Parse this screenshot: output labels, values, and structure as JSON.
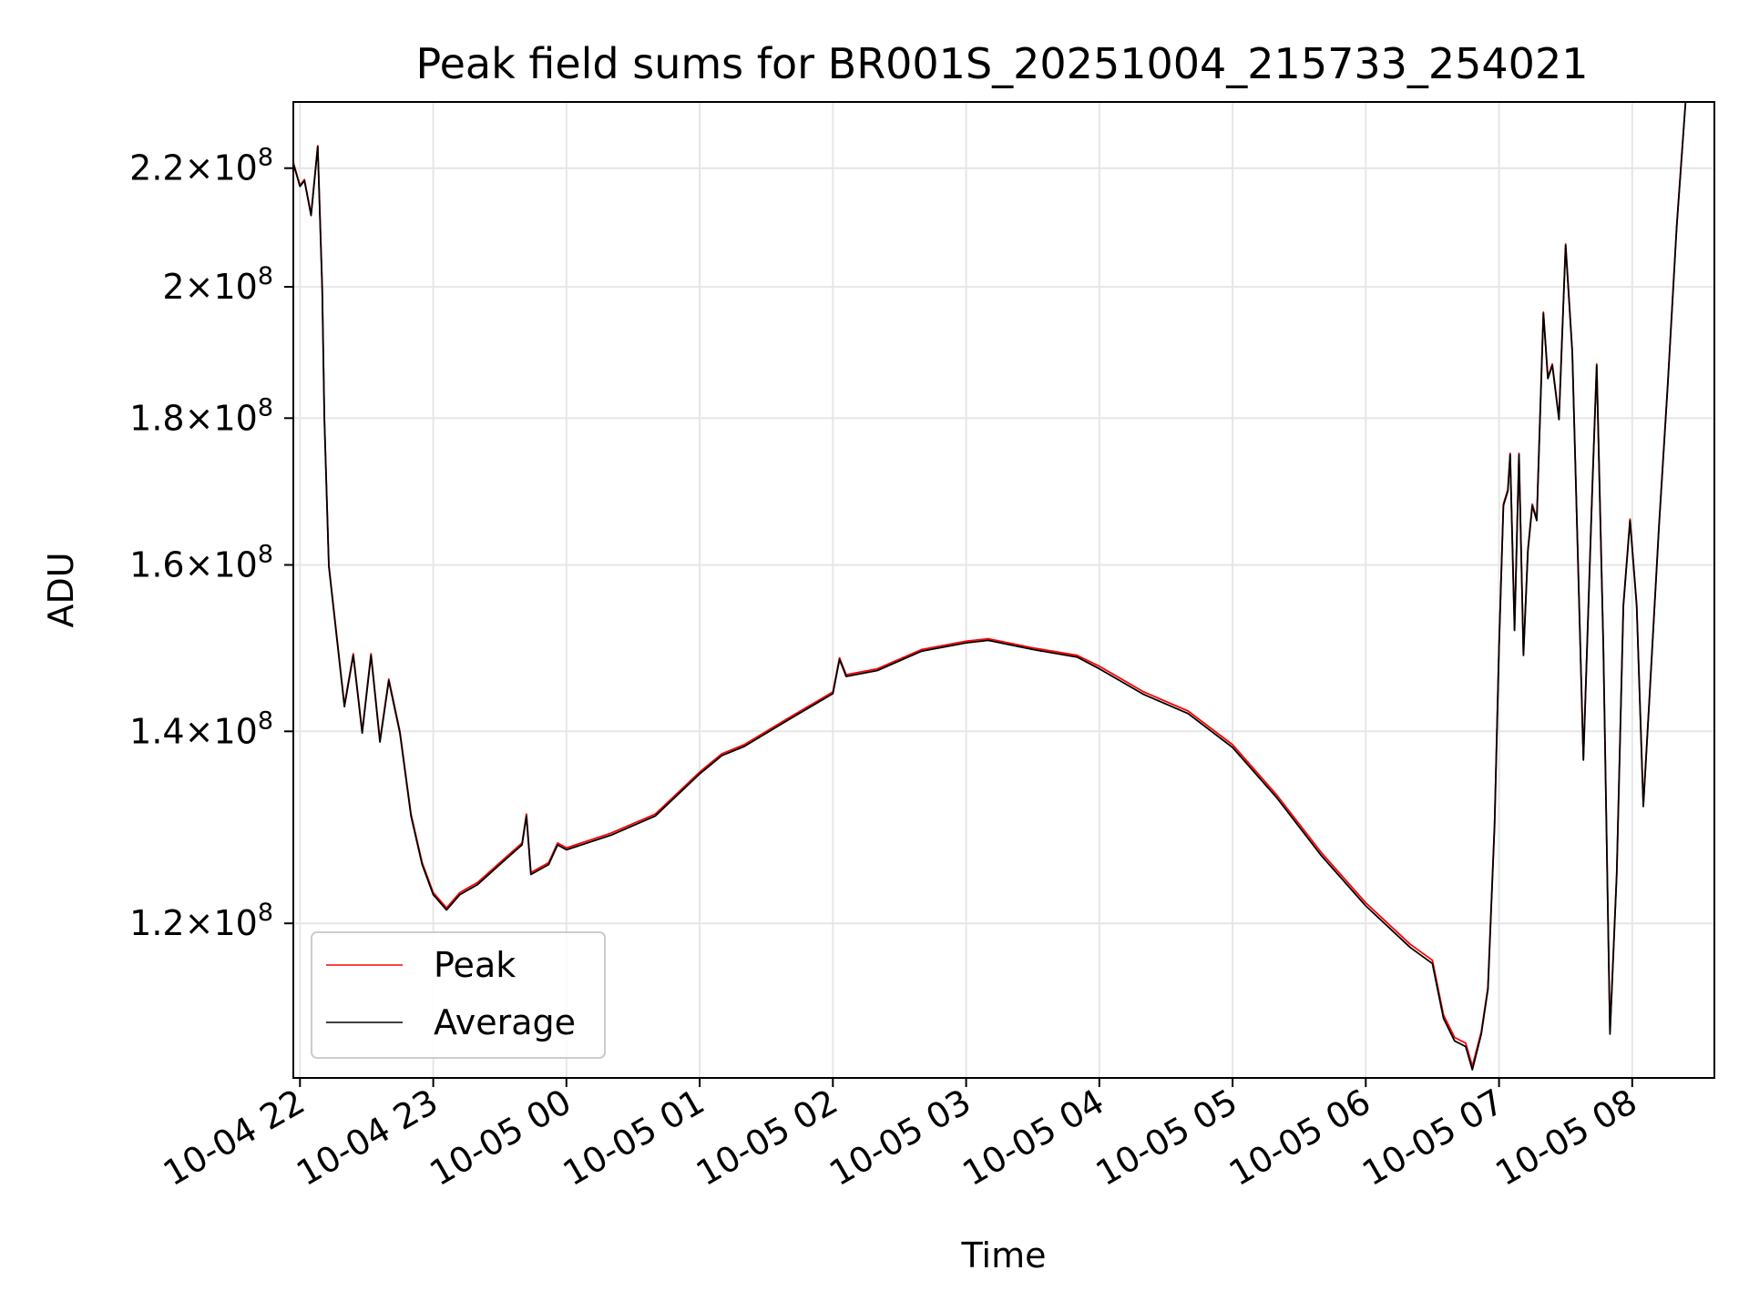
{
  "chart_data": {
    "type": "line",
    "title": "Peak field sums for BR001S_20251004_215733_254021",
    "xlabel": "Time",
    "ylabel": "ADU",
    "y_scale": "log",
    "xlim": [
      "2025-10-04T21:57",
      "2025-10-05T08:37"
    ],
    "ylim": [
      106000000,
      232000000
    ],
    "grid": true,
    "legend": {
      "placement": "lower-left",
      "entries": [
        "Peak",
        "Average"
      ]
    },
    "x_ticks": [
      {
        "value": "2025-10-04T22:00",
        "label": "10-04 22"
      },
      {
        "value": "2025-10-04T23:00",
        "label": "10-04 23"
      },
      {
        "value": "2025-10-05T00:00",
        "label": "10-05 00"
      },
      {
        "value": "2025-10-05T01:00",
        "label": "10-05 01"
      },
      {
        "value": "2025-10-05T02:00",
        "label": "10-05 02"
      },
      {
        "value": "2025-10-05T03:00",
        "label": "10-05 03"
      },
      {
        "value": "2025-10-05T04:00",
        "label": "10-05 04"
      },
      {
        "value": "2025-10-05T05:00",
        "label": "10-05 05"
      },
      {
        "value": "2025-10-05T06:00",
        "label": "10-05 06"
      },
      {
        "value": "2025-10-05T07:00",
        "label": "10-05 07"
      },
      {
        "value": "2025-10-05T08:00",
        "label": "10-05 08"
      }
    ],
    "y_ticks": [
      {
        "value": 120000000,
        "mantissa": "1.2",
        "base": "10",
        "exp": "8"
      },
      {
        "value": 140000000,
        "mantissa": "1.4",
        "base": "10",
        "exp": "8"
      },
      {
        "value": 160000000,
        "mantissa": "1.6",
        "base": "10",
        "exp": "8"
      },
      {
        "value": 180000000,
        "mantissa": "1.8",
        "base": "10",
        "exp": "8"
      },
      {
        "value": 200000000,
        "mantissa": "2",
        "base": "10",
        "exp": "8"
      },
      {
        "value": 220000000,
        "mantissa": "2.2",
        "base": "10",
        "exp": "8"
      }
    ],
    "series": [
      {
        "name": "Peak",
        "color": "#ff0000",
        "points": [
          [
            "2025-10-04T21:57",
            221000000
          ],
          [
            "2025-10-04T22:00",
            217000000
          ],
          [
            "2025-10-04T22:02",
            218000000
          ],
          [
            "2025-10-04T22:05",
            212000000
          ],
          [
            "2025-10-04T22:07",
            220000000
          ],
          [
            "2025-10-04T22:08",
            224000000
          ],
          [
            "2025-10-04T22:10",
            200000000
          ],
          [
            "2025-10-04T22:11",
            180000000
          ],
          [
            "2025-10-04T22:13",
            160000000
          ],
          [
            "2025-10-04T22:20",
            143000000
          ],
          [
            "2025-10-04T22:24",
            149000000
          ],
          [
            "2025-10-04T22:28",
            140000000
          ],
          [
            "2025-10-04T22:32",
            149000000
          ],
          [
            "2025-10-04T22:36",
            139000000
          ],
          [
            "2025-10-04T22:40",
            146000000
          ],
          [
            "2025-10-04T22:45",
            140000000
          ],
          [
            "2025-10-04T22:50",
            131000000
          ],
          [
            "2025-10-04T22:55",
            126000000
          ],
          [
            "2025-10-04T23:00",
            123000000
          ],
          [
            "2025-10-04T23:06",
            121500000
          ],
          [
            "2025-10-04T23:12",
            123000000
          ],
          [
            "2025-10-04T23:20",
            124000000
          ],
          [
            "2025-10-04T23:30",
            126000000
          ],
          [
            "2025-10-04T23:40",
            128000000
          ],
          [
            "2025-10-04T23:42",
            131000000
          ],
          [
            "2025-10-04T23:44",
            125000000
          ],
          [
            "2025-10-04T23:52",
            126000000
          ],
          [
            "2025-10-04T23:56",
            128000000
          ],
          [
            "2025-10-05T00:00",
            127500000
          ],
          [
            "2025-10-05T00:20",
            129000000
          ],
          [
            "2025-10-05T00:40",
            131000000
          ],
          [
            "2025-10-05T01:00",
            135500000
          ],
          [
            "2025-10-05T01:10",
            137500000
          ],
          [
            "2025-10-05T01:20",
            138500000
          ],
          [
            "2025-10-05T01:40",
            141500000
          ],
          [
            "2025-10-05T02:00",
            144500000
          ],
          [
            "2025-10-05T02:03",
            148500000
          ],
          [
            "2025-10-05T02:06",
            146500000
          ],
          [
            "2025-10-05T02:20",
            147200000
          ],
          [
            "2025-10-05T02:40",
            149500000
          ],
          [
            "2025-10-05T03:00",
            150500000
          ],
          [
            "2025-10-05T03:10",
            150800000
          ],
          [
            "2025-10-05T03:30",
            149700000
          ],
          [
            "2025-10-05T03:50",
            148800000
          ],
          [
            "2025-10-05T04:00",
            147500000
          ],
          [
            "2025-10-05T04:20",
            144500000
          ],
          [
            "2025-10-05T04:40",
            142300000
          ],
          [
            "2025-10-05T05:00",
            138500000
          ],
          [
            "2025-10-05T05:20",
            133000000
          ],
          [
            "2025-10-05T05:40",
            127000000
          ],
          [
            "2025-10-05T06:00",
            122000000
          ],
          [
            "2025-10-05T06:20",
            118000000
          ],
          [
            "2025-10-05T06:30",
            116500000
          ],
          [
            "2025-10-05T06:35",
            111500000
          ],
          [
            "2025-10-05T06:40",
            109500000
          ],
          [
            "2025-10-05T06:45",
            109000000
          ],
          [
            "2025-10-05T06:48",
            107000000
          ],
          [
            "2025-10-05T06:52",
            110000000
          ],
          [
            "2025-10-05T06:55",
            114000000
          ],
          [
            "2025-10-05T06:58",
            130000000
          ],
          [
            "2025-10-05T07:00",
            150000000
          ],
          [
            "2025-10-05T07:02",
            168000000
          ],
          [
            "2025-10-05T07:04",
            170000000
          ],
          [
            "2025-10-05T07:05",
            175000000
          ],
          [
            "2025-10-05T07:07",
            152000000
          ],
          [
            "2025-10-05T07:09",
            175000000
          ],
          [
            "2025-10-05T07:11",
            149000000
          ],
          [
            "2025-10-05T07:13",
            162000000
          ],
          [
            "2025-10-05T07:15",
            168000000
          ],
          [
            "2025-10-05T07:17",
            166000000
          ],
          [
            "2025-10-05T07:20",
            196000000
          ],
          [
            "2025-10-05T07:22",
            186000000
          ],
          [
            "2025-10-05T07:24",
            188000000
          ],
          [
            "2025-10-05T07:27",
            180000000
          ],
          [
            "2025-10-05T07:30",
            207000000
          ],
          [
            "2025-10-05T07:33",
            190000000
          ],
          [
            "2025-10-05T07:38",
            137000000
          ],
          [
            "2025-10-05T07:42",
            170000000
          ],
          [
            "2025-10-05T07:44",
            188000000
          ],
          [
            "2025-10-05T07:47",
            150000000
          ],
          [
            "2025-10-05T07:50",
            110000000
          ],
          [
            "2025-10-05T07:53",
            125000000
          ],
          [
            "2025-10-05T07:56",
            155000000
          ],
          [
            "2025-10-05T07:59",
            166000000
          ],
          [
            "2025-10-05T08:02",
            155000000
          ],
          [
            "2025-10-05T08:05",
            132000000
          ],
          [
            "2025-10-05T08:08",
            145000000
          ],
          [
            "2025-10-05T08:12",
            165000000
          ],
          [
            "2025-10-05T08:16",
            185000000
          ],
          [
            "2025-10-05T08:20",
            210000000
          ],
          [
            "2025-10-05T08:24",
            232000000
          ]
        ]
      },
      {
        "name": "Average",
        "color": "#000000",
        "points": [
          [
            "2025-10-04T21:57",
            220800000
          ],
          [
            "2025-10-04T22:00",
            216800000
          ],
          [
            "2025-10-04T22:02",
            217800000
          ],
          [
            "2025-10-04T22:05",
            211800000
          ],
          [
            "2025-10-04T22:07",
            219800000
          ],
          [
            "2025-10-04T22:08",
            223800000
          ],
          [
            "2025-10-04T22:10",
            199800000
          ],
          [
            "2025-10-04T22:11",
            179800000
          ],
          [
            "2025-10-04T22:13",
            159800000
          ],
          [
            "2025-10-04T22:20",
            142800000
          ],
          [
            "2025-10-04T22:24",
            148800000
          ],
          [
            "2025-10-04T22:28",
            139800000
          ],
          [
            "2025-10-04T22:32",
            148800000
          ],
          [
            "2025-10-04T22:36",
            138800000
          ],
          [
            "2025-10-04T22:40",
            145800000
          ],
          [
            "2025-10-04T22:45",
            139800000
          ],
          [
            "2025-10-04T22:50",
            130800000
          ],
          [
            "2025-10-04T22:55",
            125800000
          ],
          [
            "2025-10-04T23:00",
            122800000
          ],
          [
            "2025-10-04T23:06",
            121300000
          ],
          [
            "2025-10-04T23:12",
            122800000
          ],
          [
            "2025-10-04T23:20",
            123800000
          ],
          [
            "2025-10-04T23:30",
            125800000
          ],
          [
            "2025-10-04T23:40",
            127800000
          ],
          [
            "2025-10-04T23:42",
            130800000
          ],
          [
            "2025-10-04T23:44",
            124800000
          ],
          [
            "2025-10-04T23:52",
            125800000
          ],
          [
            "2025-10-04T23:56",
            127800000
          ],
          [
            "2025-10-05T00:00",
            127300000
          ],
          [
            "2025-10-05T00:20",
            128800000
          ],
          [
            "2025-10-05T00:40",
            130800000
          ],
          [
            "2025-10-05T01:00",
            135300000
          ],
          [
            "2025-10-05T01:10",
            137300000
          ],
          [
            "2025-10-05T01:20",
            138300000
          ],
          [
            "2025-10-05T01:40",
            141300000
          ],
          [
            "2025-10-05T02:00",
            144300000
          ],
          [
            "2025-10-05T02:03",
            148300000
          ],
          [
            "2025-10-05T02:06",
            146300000
          ],
          [
            "2025-10-05T02:20",
            147000000
          ],
          [
            "2025-10-05T02:40",
            149300000
          ],
          [
            "2025-10-05T03:00",
            150300000
          ],
          [
            "2025-10-05T03:10",
            150600000
          ],
          [
            "2025-10-05T03:30",
            149500000
          ],
          [
            "2025-10-05T03:50",
            148600000
          ],
          [
            "2025-10-05T04:00",
            147200000
          ],
          [
            "2025-10-05T04:20",
            144200000
          ],
          [
            "2025-10-05T04:40",
            142000000
          ],
          [
            "2025-10-05T05:00",
            138200000
          ],
          [
            "2025-10-05T05:20",
            132700000
          ],
          [
            "2025-10-05T05:40",
            126700000
          ],
          [
            "2025-10-05T06:00",
            121700000
          ],
          [
            "2025-10-05T06:20",
            117700000
          ],
          [
            "2025-10-05T06:30",
            116200000
          ],
          [
            "2025-10-05T06:35",
            111200000
          ],
          [
            "2025-10-05T06:40",
            109200000
          ],
          [
            "2025-10-05T06:45",
            108700000
          ],
          [
            "2025-10-05T06:48",
            106700000
          ],
          [
            "2025-10-05T06:52",
            109800000
          ],
          [
            "2025-10-05T06:55",
            113800000
          ],
          [
            "2025-10-05T06:58",
            129800000
          ],
          [
            "2025-10-05T07:00",
            149800000
          ],
          [
            "2025-10-05T07:02",
            167800000
          ],
          [
            "2025-10-05T07:04",
            169800000
          ],
          [
            "2025-10-05T07:05",
            174800000
          ],
          [
            "2025-10-05T07:07",
            151800000
          ],
          [
            "2025-10-05T07:09",
            174800000
          ],
          [
            "2025-10-05T07:11",
            148800000
          ],
          [
            "2025-10-05T07:13",
            161800000
          ],
          [
            "2025-10-05T07:15",
            167800000
          ],
          [
            "2025-10-05T07:17",
            165800000
          ],
          [
            "2025-10-05T07:20",
            195800000
          ],
          [
            "2025-10-05T07:22",
            185800000
          ],
          [
            "2025-10-05T07:24",
            187800000
          ],
          [
            "2025-10-05T07:27",
            179800000
          ],
          [
            "2025-10-05T07:30",
            206800000
          ],
          [
            "2025-10-05T07:33",
            189800000
          ],
          [
            "2025-10-05T07:38",
            136800000
          ],
          [
            "2025-10-05T07:42",
            169800000
          ],
          [
            "2025-10-05T07:44",
            187800000
          ],
          [
            "2025-10-05T07:47",
            149800000
          ],
          [
            "2025-10-05T07:50",
            109800000
          ],
          [
            "2025-10-05T07:53",
            124800000
          ],
          [
            "2025-10-05T07:56",
            154800000
          ],
          [
            "2025-10-05T07:59",
            165800000
          ],
          [
            "2025-10-05T08:02",
            154800000
          ],
          [
            "2025-10-05T08:05",
            131800000
          ],
          [
            "2025-10-05T08:08",
            144800000
          ],
          [
            "2025-10-05T08:12",
            164800000
          ],
          [
            "2025-10-05T08:16",
            184800000
          ],
          [
            "2025-10-05T08:20",
            209800000
          ],
          [
            "2025-10-05T08:24",
            231800000
          ]
        ]
      }
    ]
  }
}
